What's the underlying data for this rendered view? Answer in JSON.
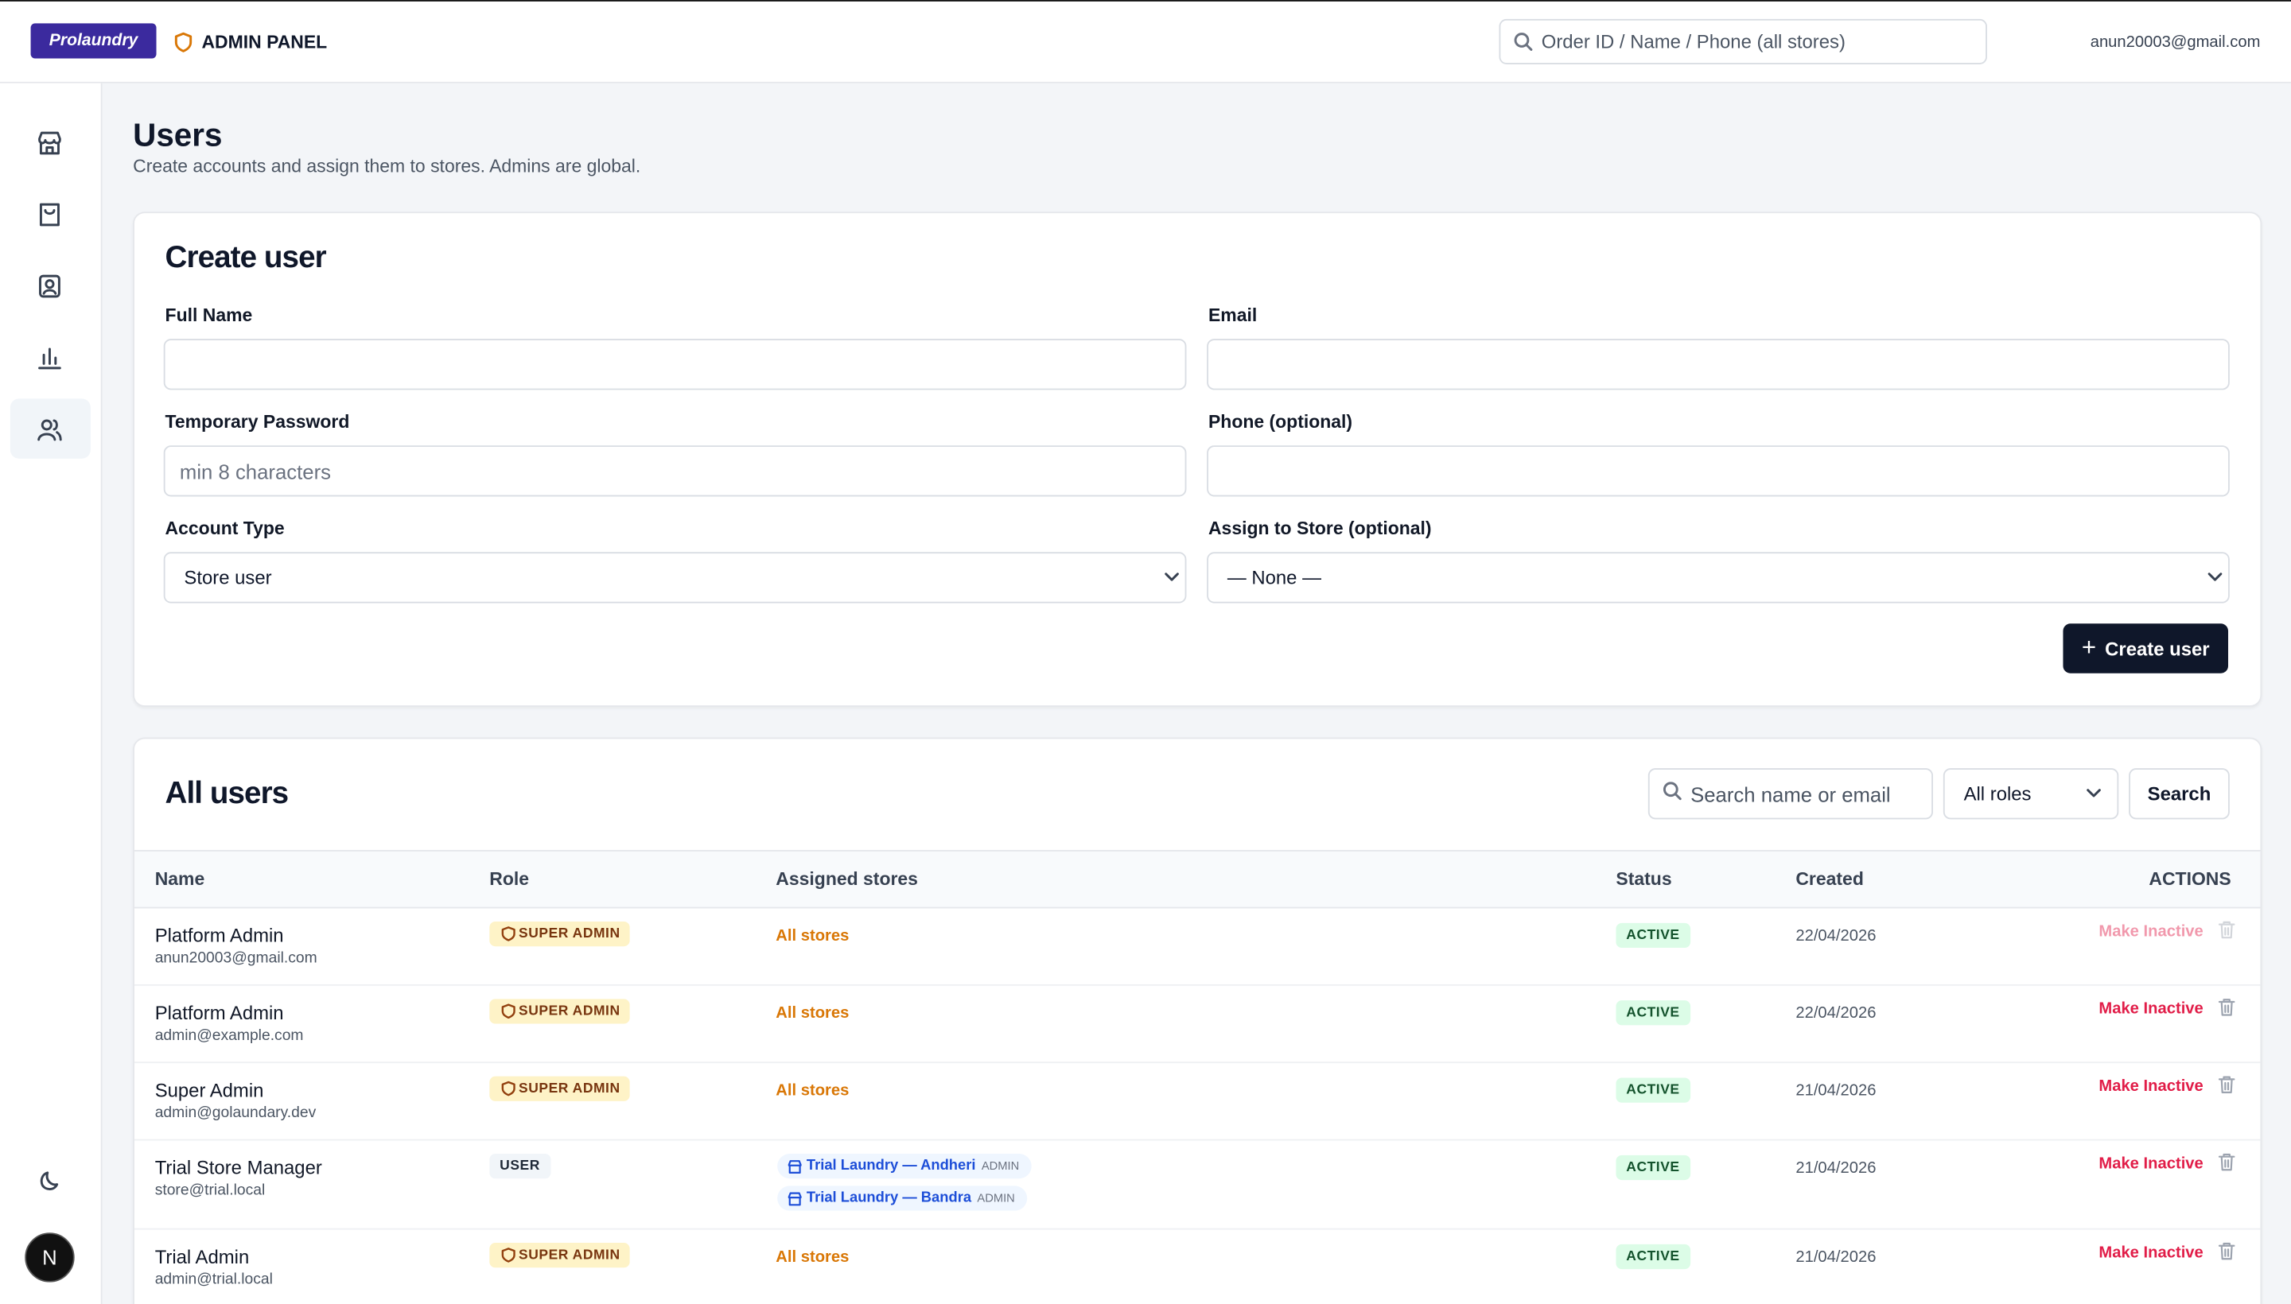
{
  "header": {
    "logo": "Prolaundry",
    "panel": "ADMIN PANEL",
    "search_placeholder": "Order ID / Name / Phone (all stores)",
    "user_email": "anun20003@gmail.com"
  },
  "sidebar": {
    "avatar": "N"
  },
  "page": {
    "title": "Users",
    "subtitle": "Create accounts and assign them to stores. Admins are global."
  },
  "create_form": {
    "title": "Create user",
    "fields": [
      {
        "label": "Full Name"
      },
      {
        "label": "Email"
      },
      {
        "label": "Temporary Password",
        "placeholder": "min 8 characters"
      },
      {
        "label": "Phone (optional)"
      },
      {
        "label": "Account Type",
        "value": "Store user"
      },
      {
        "label": "Assign to Store (optional)",
        "value": "— None —"
      }
    ],
    "submit": "Create user"
  },
  "users_table": {
    "title": "All users",
    "search_placeholder": "Search name or email",
    "role_filter": "All roles",
    "search_button": "Search",
    "columns": [
      "Name",
      "Role",
      "Assigned stores",
      "Status",
      "Created",
      "ACTIONS"
    ],
    "rows": [
      {
        "name": "Platform Admin",
        "email": "anun20003@gmail.com",
        "role": "SUPER ADMIN",
        "all_stores": "All stores",
        "status": "ACTIVE",
        "created": "22/04/2026",
        "action": "Make Inactive"
      },
      {
        "name": "Platform Admin",
        "email": "admin@example.com",
        "role": "SUPER ADMIN",
        "all_stores": "All stores",
        "status": "ACTIVE",
        "created": "22/04/2026",
        "action": "Make Inactive"
      },
      {
        "name": "Super Admin",
        "email": "admin@golaundary.dev",
        "role": "SUPER ADMIN",
        "all_stores": "All stores",
        "status": "ACTIVE",
        "created": "21/04/2026",
        "action": "Make Inactive"
      },
      {
        "name": "Trial Store Manager",
        "email": "store@trial.local",
        "role": "USER",
        "stores": [
          {
            "name": "Trial Laundry — Andheri",
            "role": "ADMIN"
          },
          {
            "name": "Trial Laundry — Bandra",
            "role": "ADMIN"
          }
        ],
        "status": "ACTIVE",
        "created": "21/04/2026",
        "action": "Make Inactive"
      },
      {
        "name": "Trial Admin",
        "email": "admin@trial.local",
        "role": "SUPER ADMIN",
        "all_stores": "All stores",
        "status": "ACTIVE",
        "created": "21/04/2026",
        "action": "Make Inactive"
      }
    ]
  }
}
